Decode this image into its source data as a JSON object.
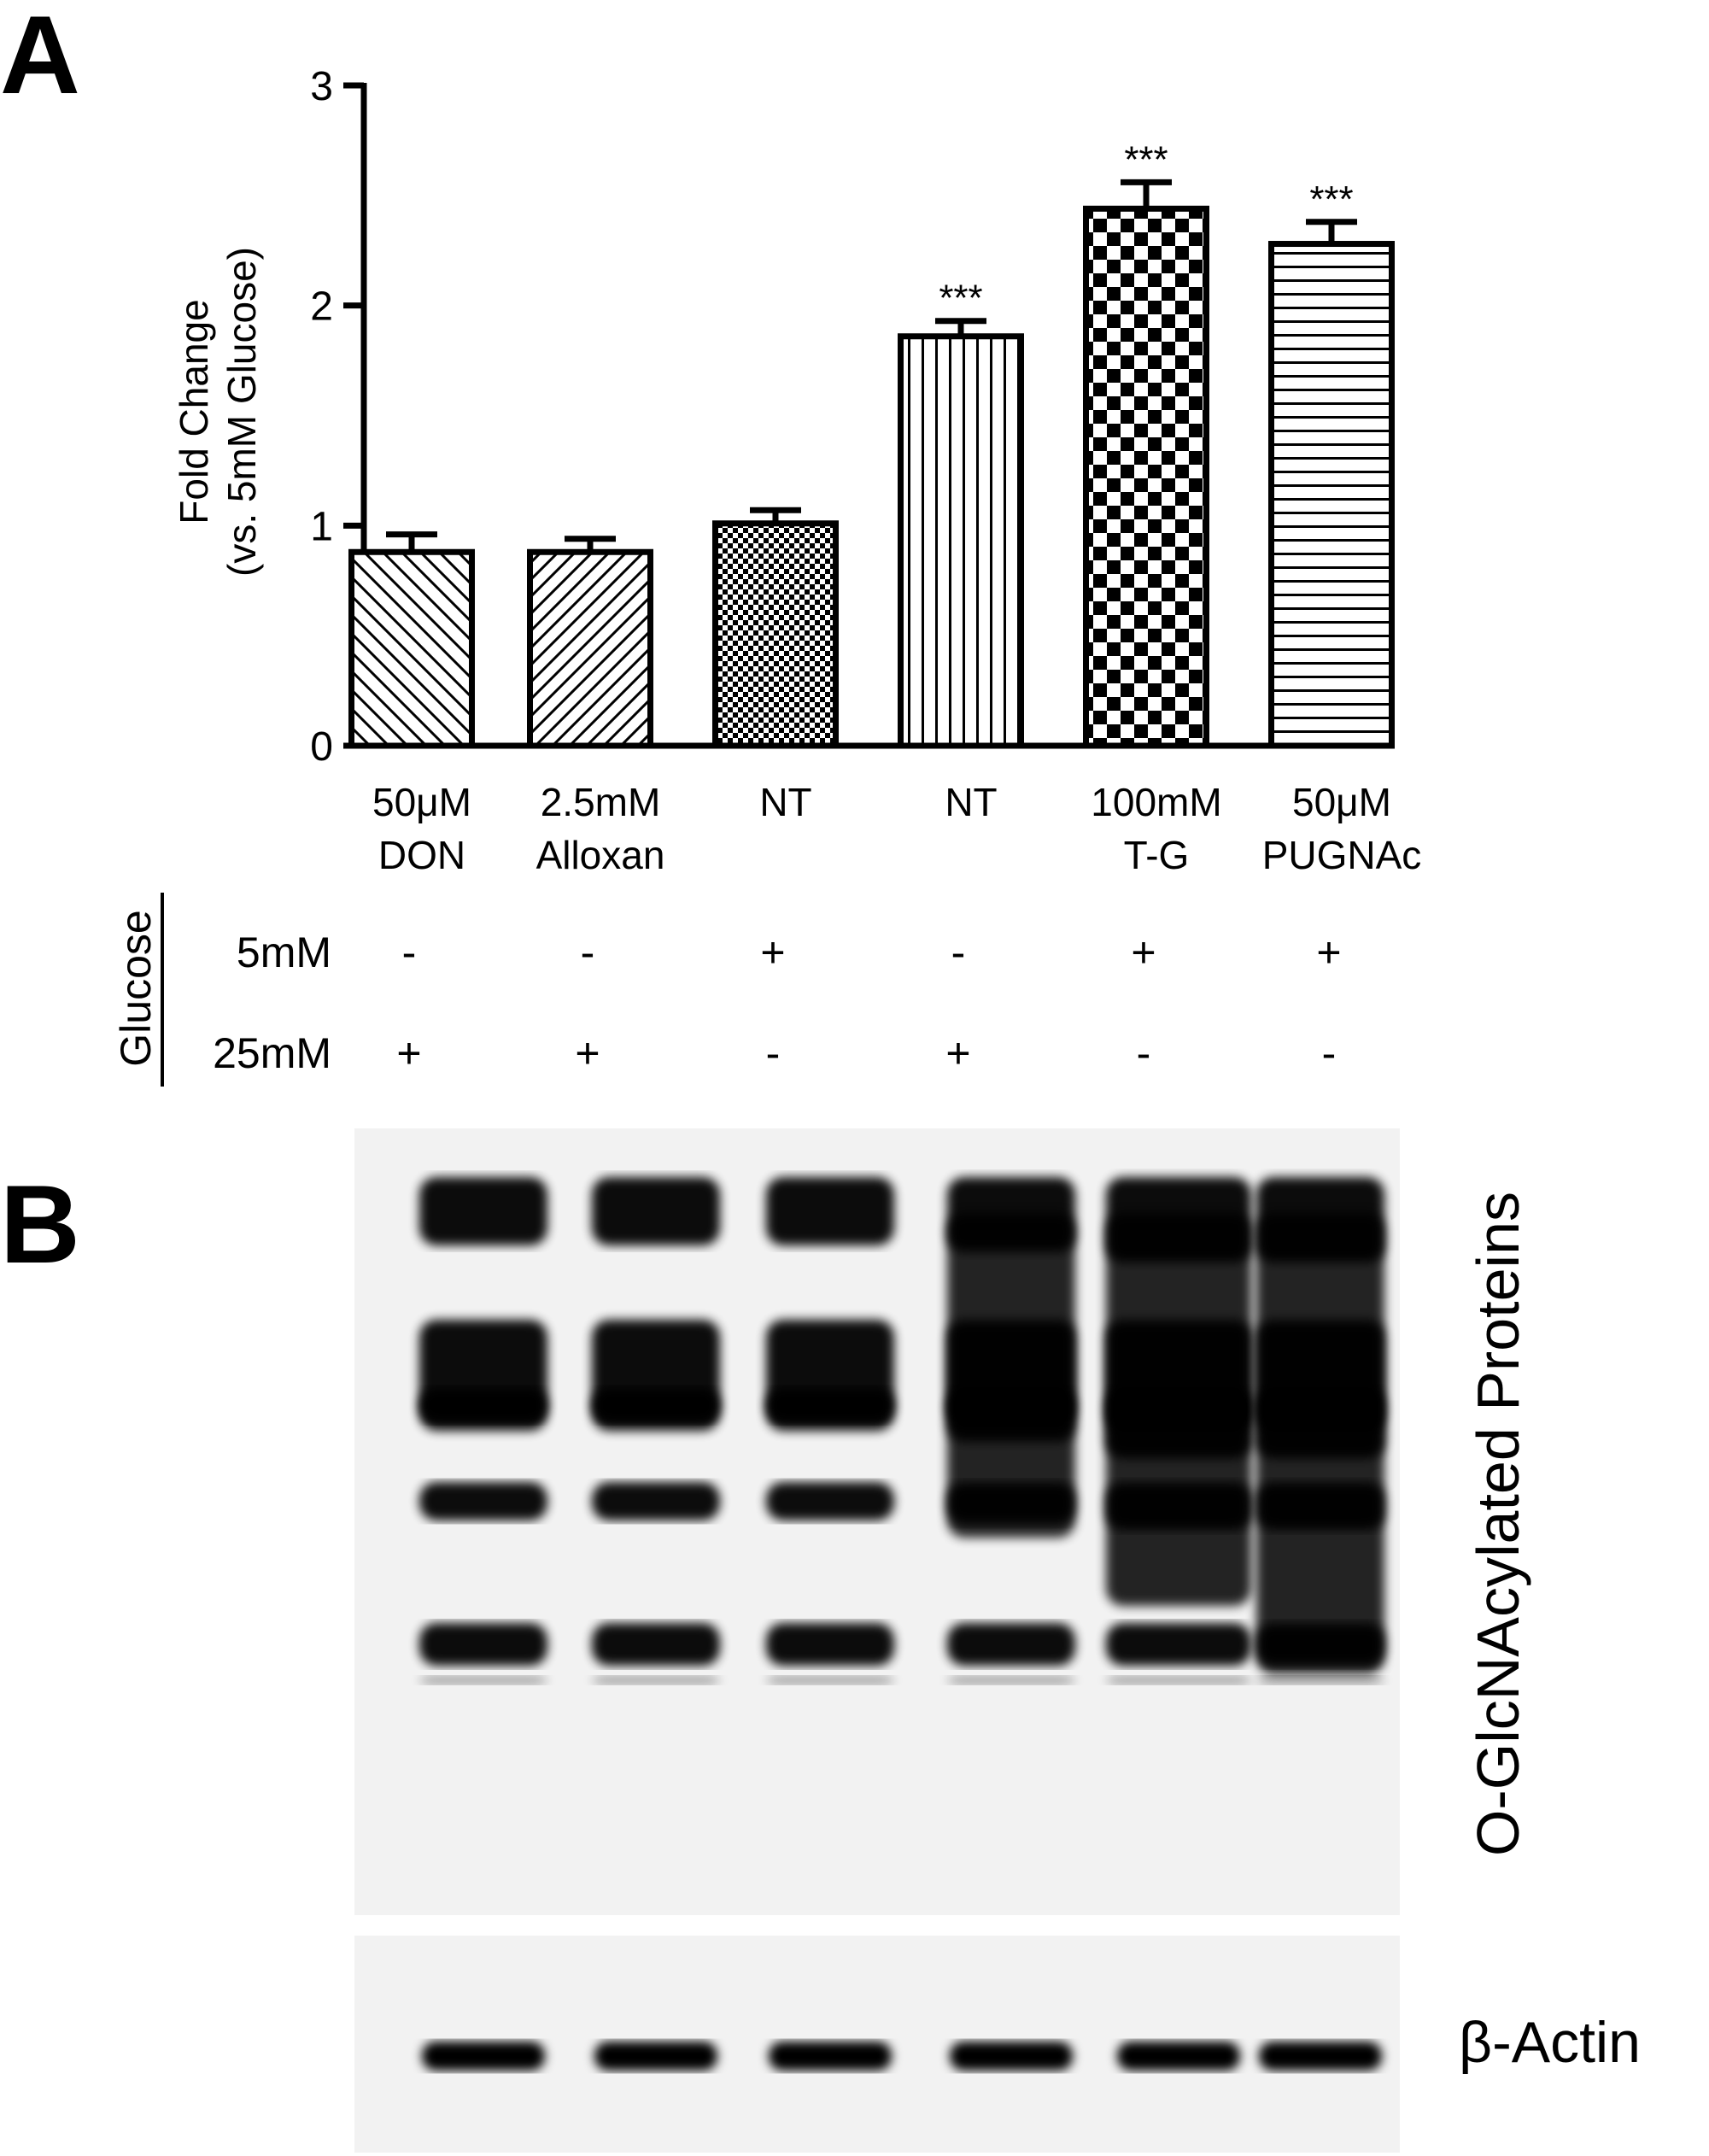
{
  "chart_data": {
    "type": "bar",
    "panel_labels": [
      "A",
      "B"
    ],
    "ylabel": [
      "Fold Change",
      "(vs. 5mM Glucose)"
    ],
    "categories": [
      [
        "50μM",
        "DON"
      ],
      [
        "2.5mM",
        "Alloxan"
      ],
      [
        "NT"
      ],
      [
        "NT"
      ],
      [
        "100mM",
        "T-G"
      ],
      [
        "50μM",
        "PUGNAc"
      ]
    ],
    "values": [
      0.88,
      0.88,
      1.01,
      1.86,
      2.44,
      2.28
    ],
    "errors": [
      0.08,
      0.06,
      0.06,
      0.07,
      0.12,
      0.1
    ],
    "value_labels": [
      null,
      null,
      null,
      "***",
      "***",
      "***"
    ],
    "color": "#000000",
    "ylim": [
      0,
      3
    ],
    "yticks": [
      0,
      1,
      2,
      3
    ],
    "conditions": {
      "label": "Glucose",
      "rows": [
        {
          "name": "5mM",
          "values": [
            "-",
            "-",
            "+",
            "-",
            "+",
            "+"
          ]
        },
        {
          "name": "25mM",
          "values": [
            "+",
            "+",
            "-",
            "+",
            "-",
            "-"
          ]
        }
      ]
    },
    "blot_labels": [
      "O-GlcNAcylated Proteins",
      "β-Actin"
    ]
  }
}
